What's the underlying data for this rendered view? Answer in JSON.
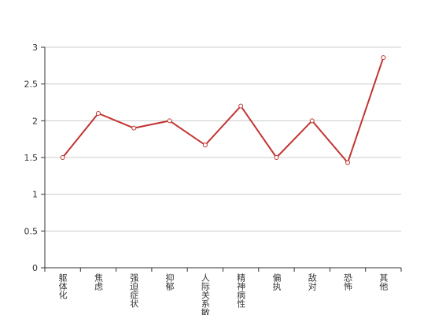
{
  "chart_data": {
    "type": "line",
    "categories": [
      "躯体化",
      "焦虑",
      "强迫症状",
      "抑郁",
      "人际关系敏感",
      "精神病性",
      "偏执",
      "敌对",
      "恐怖",
      "其他"
    ],
    "values": [
      1.5,
      2.1,
      1.9,
      2.0,
      1.67,
      2.2,
      1.5,
      2.0,
      1.43,
      2.86
    ],
    "color": "#c23531",
    "ylim": [
      0,
      3
    ],
    "yticks": [
      0,
      0.5,
      1,
      1.5,
      2,
      2.5,
      3
    ],
    "grid": true
  }
}
